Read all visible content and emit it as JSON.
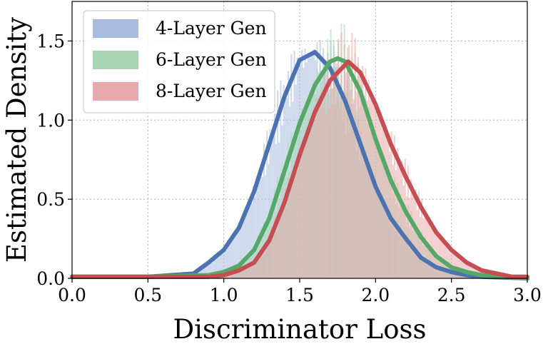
{
  "chart_data": {
    "type": "area",
    "xlabel": "Discriminator Loss",
    "ylabel": "Estimated Density",
    "xlim": [
      0.0,
      3.0
    ],
    "ylim": [
      0.0,
      1.75
    ],
    "x_ticks": [
      "0.0",
      "0.5",
      "1.0",
      "1.5",
      "2.0",
      "2.5",
      "3.0"
    ],
    "y_ticks": [
      "0.0",
      "0.5",
      "1.0",
      "1.5"
    ],
    "grid": true,
    "legend_position": "top-left",
    "series": [
      {
        "name": "4-Layer Gen",
        "color": "#4c72b0",
        "fill_color": "#a7bcde",
        "mode": 1.6,
        "peak_density": 1.43,
        "kde_curve": {
          "x": [
            0.0,
            0.5,
            0.8,
            0.9,
            1.0,
            1.1,
            1.2,
            1.3,
            1.4,
            1.5,
            1.6,
            1.7,
            1.8,
            1.9,
            2.0,
            2.1,
            2.2,
            2.3,
            2.4,
            2.5,
            2.6,
            2.7,
            3.0
          ],
          "y": [
            0.01,
            0.01,
            0.03,
            0.1,
            0.18,
            0.32,
            0.55,
            0.85,
            1.15,
            1.38,
            1.43,
            1.33,
            1.12,
            0.85,
            0.58,
            0.38,
            0.25,
            0.13,
            0.07,
            0.04,
            0.02,
            0.01,
            0.0
          ]
        }
      },
      {
        "name": "6-Layer Gen",
        "color": "#55a868",
        "fill_color": "#aad5b3",
        "mode": 1.75,
        "peak_density": 1.39,
        "kde_curve": {
          "x": [
            0.0,
            0.5,
            0.9,
            1.0,
            1.1,
            1.2,
            1.3,
            1.4,
            1.5,
            1.6,
            1.7,
            1.75,
            1.8,
            1.9,
            2.0,
            2.1,
            2.2,
            2.3,
            2.4,
            2.5,
            2.6,
            2.7,
            2.8,
            3.0
          ],
          "y": [
            0.01,
            0.01,
            0.02,
            0.04,
            0.08,
            0.18,
            0.38,
            0.68,
            0.98,
            1.22,
            1.37,
            1.39,
            1.37,
            1.18,
            0.88,
            0.62,
            0.42,
            0.26,
            0.14,
            0.07,
            0.04,
            0.02,
            0.01,
            0.0
          ]
        }
      },
      {
        "name": "8-Layer Gen",
        "color": "#c44e52",
        "fill_color": "#e7a9ab",
        "mode": 1.82,
        "peak_density": 1.37,
        "kde_curve": {
          "x": [
            0.0,
            0.5,
            0.9,
            1.0,
            1.1,
            1.2,
            1.3,
            1.4,
            1.5,
            1.6,
            1.7,
            1.82,
            1.9,
            2.0,
            2.1,
            2.2,
            2.3,
            2.4,
            2.5,
            2.6,
            2.7,
            2.8,
            2.9,
            3.0
          ],
          "y": [
            0.01,
            0.01,
            0.01,
            0.02,
            0.05,
            0.1,
            0.24,
            0.48,
            0.78,
            1.05,
            1.25,
            1.37,
            1.3,
            1.1,
            0.85,
            0.64,
            0.45,
            0.29,
            0.18,
            0.1,
            0.05,
            0.03,
            0.01,
            0.01
          ]
        }
      }
    ]
  }
}
